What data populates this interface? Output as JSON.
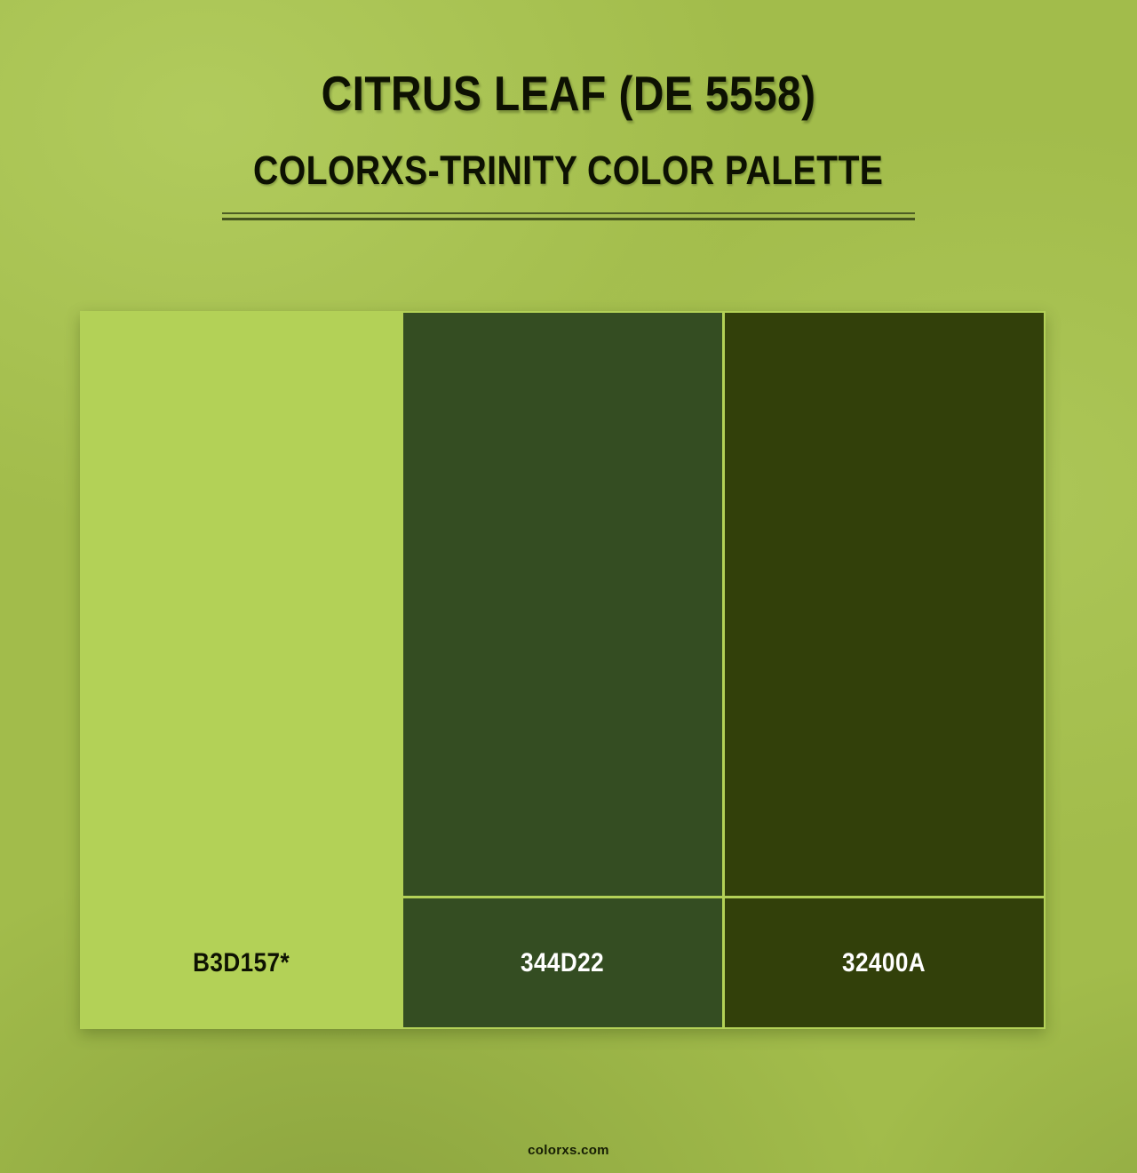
{
  "header": {
    "title": "CITRUS LEAF (DE 5558)",
    "subtitle": "COLORXS-TRINITY COLOR PALETTE"
  },
  "palette": {
    "border_color": "#B3D157",
    "divider_colors": [
      "#4D5D24",
      "#44531E"
    ],
    "swatches": [
      {
        "hex": "B3D157*",
        "color": "#B3D157",
        "label_color": "#0E1202"
      },
      {
        "hex": "344D22",
        "color": "#344D22",
        "label_color": "#FFFFFF"
      },
      {
        "hex": "32400A",
        "color": "#32400A",
        "label_color": "#FFFFFF"
      }
    ]
  },
  "footer": {
    "brand": "colorxs.com"
  },
  "page": {
    "background_color": "#A2BC4B"
  }
}
